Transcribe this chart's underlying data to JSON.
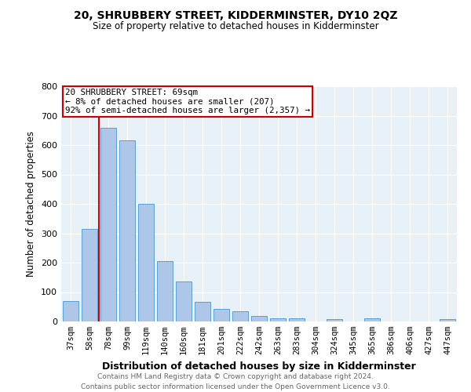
{
  "title": "20, SHRUBBERY STREET, KIDDERMINSTER, DY10 2QZ",
  "subtitle": "Size of property relative to detached houses in Kidderminster",
  "xlabel": "Distribution of detached houses by size in Kidderminster",
  "ylabel": "Number of detached properties",
  "categories": [
    "37sqm",
    "58sqm",
    "78sqm",
    "99sqm",
    "119sqm",
    "140sqm",
    "160sqm",
    "181sqm",
    "201sqm",
    "222sqm",
    "242sqm",
    "263sqm",
    "283sqm",
    "304sqm",
    "324sqm",
    "345sqm",
    "365sqm",
    "386sqm",
    "406sqm",
    "427sqm",
    "447sqm"
  ],
  "values": [
    70,
    315,
    660,
    615,
    400,
    205,
    135,
    68,
    42,
    35,
    18,
    10,
    10,
    0,
    7,
    0,
    10,
    0,
    0,
    0,
    8
  ],
  "bar_color": "#aec6e8",
  "bar_edge_color": "#5a9fd4",
  "vline_color": "#cc0000",
  "ylim": [
    0,
    800
  ],
  "yticks": [
    0,
    100,
    200,
    300,
    400,
    500,
    600,
    700,
    800
  ],
  "annotation_text": "20 SHRUBBERY STREET: 69sqm\n← 8% of detached houses are smaller (207)\n92% of semi-detached houses are larger (2,357) →",
  "annotation_box_color": "#cc0000",
  "footer_line1": "Contains HM Land Registry data © Crown copyright and database right 2024.",
  "footer_line2": "Contains public sector information licensed under the Open Government Licence v3.0.",
  "background_color": "#e8f0f8",
  "figsize": [
    6.0,
    5.0
  ],
  "dpi": 100
}
